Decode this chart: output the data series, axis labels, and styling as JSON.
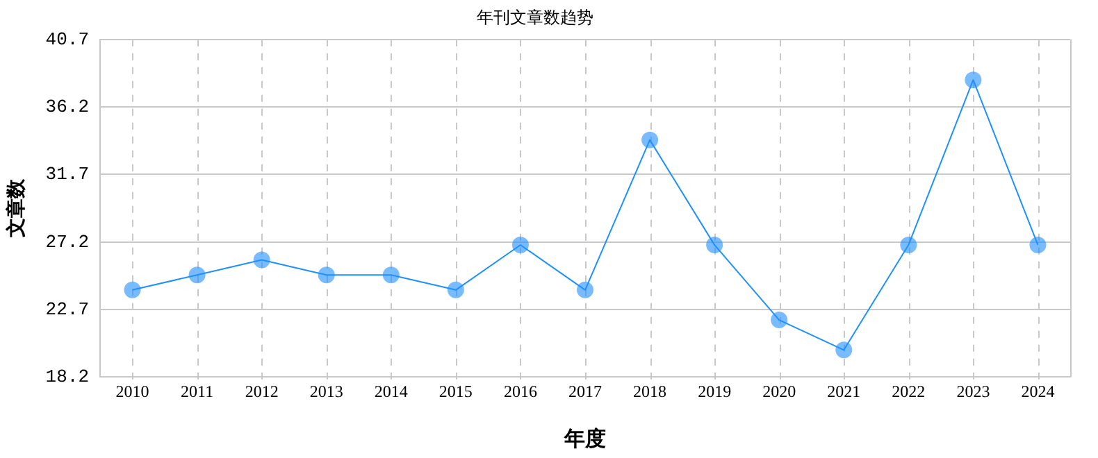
{
  "chart_data": {
    "type": "line",
    "title": "年刊文章数趋势",
    "xlabel": "年度",
    "ylabel": "文章数",
    "categories": [
      "2010",
      "2011",
      "2012",
      "2013",
      "2014",
      "2015",
      "2016",
      "2017",
      "2018",
      "2019",
      "2020",
      "2021",
      "2022",
      "2023",
      "2024"
    ],
    "series": [
      {
        "color": "#1e90ff",
        "values": [
          24,
          25,
          26,
          25,
          25,
          24,
          27,
          24,
          34,
          27,
          22,
          20,
          27,
          38,
          27
        ]
      }
    ],
    "ylim": [
      18.2,
      40.7
    ],
    "yticks": [
      18.2,
      22.7,
      27.2,
      31.7,
      36.2,
      40.7
    ],
    "grid": true,
    "marker": "circle",
    "line_style": "solid",
    "legend": false
  }
}
